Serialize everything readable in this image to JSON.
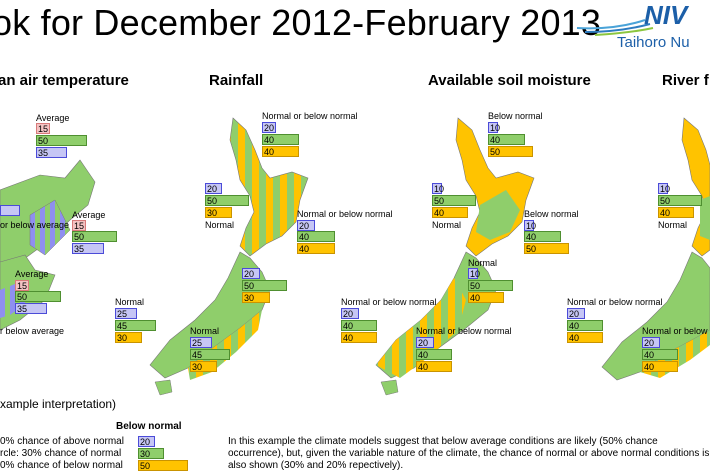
{
  "title": "ok for December 2012-February 2013",
  "logo": {
    "word": "NIV",
    "sub": "Taihoro Nu"
  },
  "colors": {
    "land_green": "#8fce6b",
    "yellow": "#ffc300",
    "blue": "#c6c6f5",
    "pink": "#f4c3c3"
  },
  "columns": [
    {
      "title": "an air temperature"
    },
    {
      "title": "Rainfall"
    },
    {
      "title": "Available soil moisture"
    },
    {
      "title": "River f"
    }
  ],
  "temp_panel": {
    "north_top": {
      "label": "Average",
      "v": [
        "15",
        "50",
        "35"
      ]
    },
    "east": {
      "label": "Average",
      "v": [
        "15",
        "50",
        "35"
      ]
    },
    "west_label": "or below average",
    "south_top": {
      "label": "Average",
      "v": [
        "15",
        "50",
        "35"
      ]
    },
    "south_west_label": "r below average"
  },
  "rain_panel": {
    "north_top": {
      "label": "Normal or below normal",
      "v": [
        "20",
        "40",
        "40"
      ]
    },
    "west": {
      "label": "Normal",
      "v": [
        "20",
        "50",
        "30"
      ]
    },
    "east": {
      "label": "Normal or below normal",
      "v": [
        "20",
        "40",
        "40"
      ]
    },
    "south_east": {
      "v": [
        "20",
        "50",
        "30"
      ]
    },
    "south_west": {
      "label": "Normal",
      "v": [
        "25",
        "45",
        "30"
      ]
    },
    "south_east2": {
      "label": "Normal",
      "v": [
        "25",
        "45",
        "30"
      ]
    }
  },
  "soil_panel": {
    "north_top": {
      "label": "Below normal",
      "v": [
        "10",
        "40",
        "50"
      ]
    },
    "west": {
      "label": "Normal",
      "v": [
        "10",
        "50",
        "40"
      ]
    },
    "east": {
      "label": "Below normal",
      "v": [
        "10",
        "40",
        "50"
      ]
    },
    "south_east": {
      "label": "Normal",
      "v": [
        "10",
        "50",
        "40"
      ]
    },
    "south_west": {
      "label": "Normal or below normal",
      "v": [
        "20",
        "40",
        "40"
      ]
    },
    "south_east2": {
      "label": "Normal or below normal",
      "v": [
        "20",
        "40",
        "40"
      ]
    }
  },
  "river_panel": {
    "west": {
      "label": "Normal",
      "v": [
        "10",
        "50",
        "40"
      ]
    },
    "south_west": {
      "label": "Normal or below normal",
      "v": [
        "20",
        "40",
        "40"
      ]
    },
    "south_east2": {
      "label": "Normal or below normal",
      "v": [
        "20",
        "40",
        "40"
      ]
    }
  },
  "legend": {
    "heading": "xample interpretation)",
    "label": "Below normal",
    "row1": "0% chance of above normal",
    "row2": "rcle: 30% chance of normal",
    "row3": "0% chance of below normal",
    "v": [
      "20",
      "30",
      "50"
    ]
  },
  "explanation": "In this example the climate models suggest that below average conditions are likely (50% chance occurrence), but, given the variable nature of the climate, the chance of normal or above normal conditions is also shown (30% and 20% repectively)."
}
